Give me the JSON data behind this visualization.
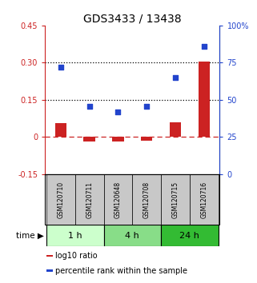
{
  "title": "GDS3433 / 13438",
  "samples": [
    "GSM120710",
    "GSM120711",
    "GSM120648",
    "GSM120708",
    "GSM120715",
    "GSM120716"
  ],
  "log10_ratio": [
    0.055,
    -0.02,
    -0.018,
    -0.015,
    0.06,
    0.305
  ],
  "percentile_rank": [
    72,
    45.5,
    42,
    45.5,
    65,
    86
  ],
  "ylim_left": [
    -0.15,
    0.45
  ],
  "ylim_right": [
    0,
    100
  ],
  "yticks_left": [
    -0.15,
    0.0,
    0.15,
    0.3,
    0.45
  ],
  "yticks_right": [
    0,
    25,
    50,
    75,
    100
  ],
  "ytick_labels_left": [
    "-0.15",
    "0",
    "0.15",
    "0.30",
    "0.45"
  ],
  "ytick_labels_right": [
    "0",
    "25",
    "50",
    "75",
    "100%"
  ],
  "hlines": [
    0.0,
    0.15,
    0.3
  ],
  "hline_styles": [
    "dashed",
    "dotted",
    "dotted"
  ],
  "hline_colors": [
    "#cc2222",
    "#000000",
    "#000000"
  ],
  "groups": [
    {
      "label": "1 h",
      "samples": [
        0,
        1
      ],
      "color": "#ccffcc"
    },
    {
      "label": "4 h",
      "samples": [
        2,
        3
      ],
      "color": "#88dd88"
    },
    {
      "label": "24 h",
      "samples": [
        4,
        5
      ],
      "color": "#33bb33"
    }
  ],
  "bar_color": "#cc2222",
  "dot_color": "#2244cc",
  "legend_items": [
    {
      "color": "#cc2222",
      "label": "log10 ratio"
    },
    {
      "color": "#2244cc",
      "label": "percentile rank within the sample"
    }
  ],
  "title_fontsize": 10,
  "tick_fontsize": 7,
  "label_fontsize": 7
}
